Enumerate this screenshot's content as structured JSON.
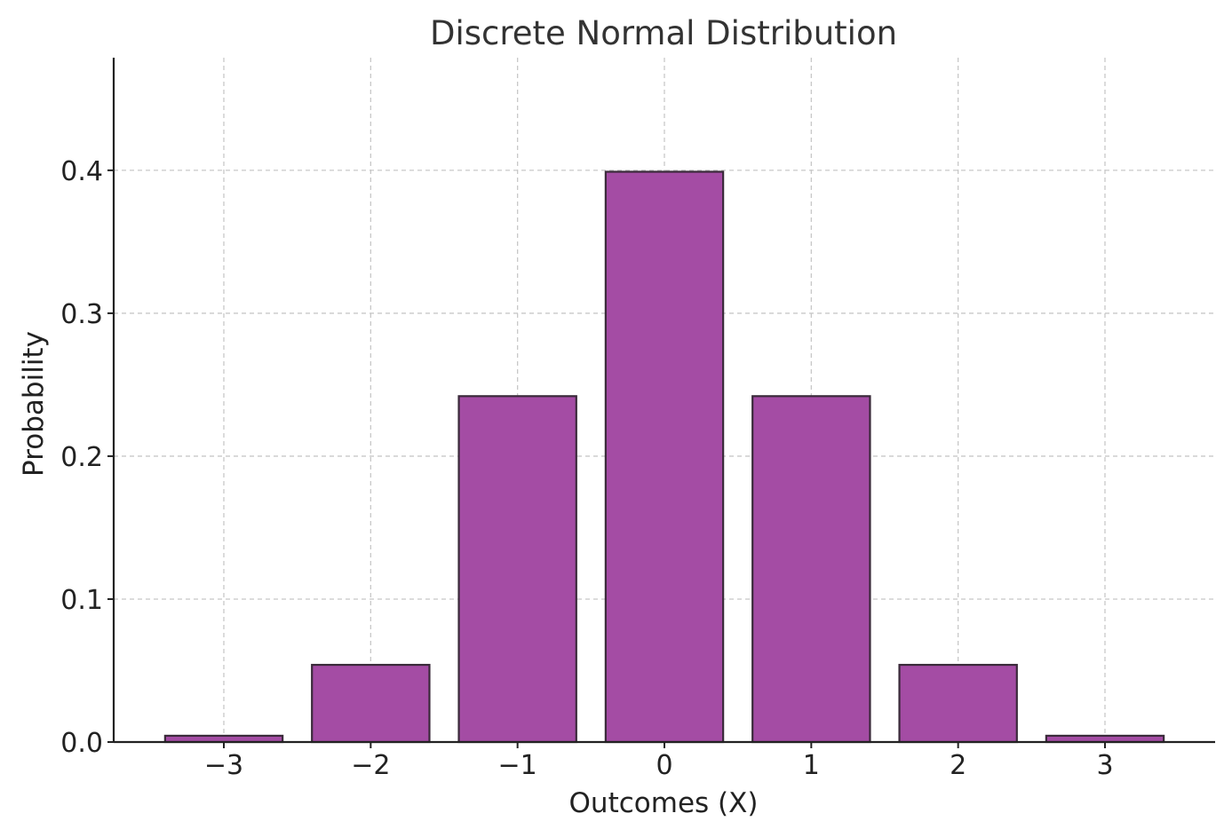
{
  "chart_data": {
    "type": "bar",
    "title": "Discrete Normal Distribution",
    "xlabel": "Outcomes (X)",
    "ylabel": "Probability",
    "categories": [
      -3,
      -2,
      -1,
      0,
      1,
      2,
      3
    ],
    "x_tick_labels": [
      "−3",
      "−2",
      "−1",
      "0",
      "1",
      "2",
      "3"
    ],
    "values": [
      0.0044,
      0.054,
      0.242,
      0.399,
      0.242,
      0.054,
      0.0044
    ],
    "xlim": [
      -3.75,
      3.75
    ],
    "ylim": [
      0,
      0.4788
    ],
    "y_ticks": [
      0.0,
      0.1,
      0.2,
      0.3,
      0.4
    ],
    "y_tick_labels": [
      "0.0",
      "0.1",
      "0.2",
      "0.3",
      "0.4"
    ],
    "bar_width": 0.8,
    "grid": true,
    "legend": "none",
    "colors": {
      "bar_fill": "#a44ca4",
      "bar_edge": "#3a2a3a"
    }
  }
}
